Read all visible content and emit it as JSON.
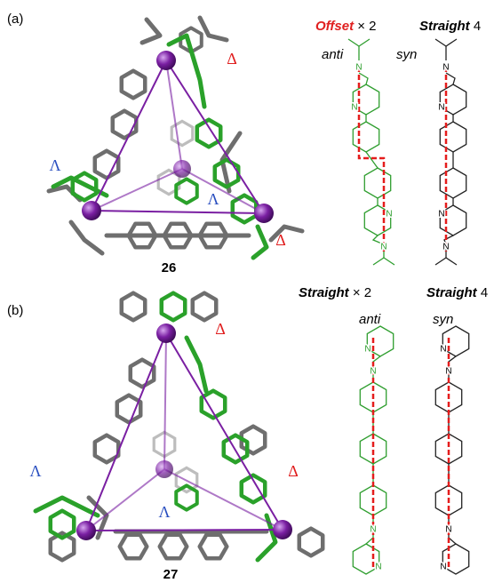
{
  "panels": [
    {
      "label": "(a)",
      "compound": "26",
      "left_heading": {
        "emphasis": "Offset",
        "text": "× 2"
      },
      "right_heading": {
        "emphasis": "Straight",
        "text": "4"
      },
      "left_conformation": "anti",
      "right_conformation": "syn",
      "stereo_labels": [
        "Δ",
        "Λ",
        "Λ",
        "Δ"
      ],
      "left_atoms": [
        "N",
        "N",
        "N",
        "N"
      ],
      "right_atoms": [
        "N",
        "N",
        "N",
        "N"
      ]
    },
    {
      "label": "(b)",
      "compound": "27",
      "left_heading": {
        "emphasis": "Straight",
        "text": "× 2"
      },
      "right_heading": {
        "emphasis": "Straight",
        "text": "4"
      },
      "left_conformation": "anti",
      "right_conformation": "syn",
      "stereo_labels": [
        "Δ",
        "Λ",
        "Λ",
        "Δ"
      ],
      "left_atoms": [
        "N",
        "N",
        "N",
        "N"
      ],
      "right_atoms": [
        "N",
        "N",
        "N",
        "N"
      ]
    }
  ]
}
